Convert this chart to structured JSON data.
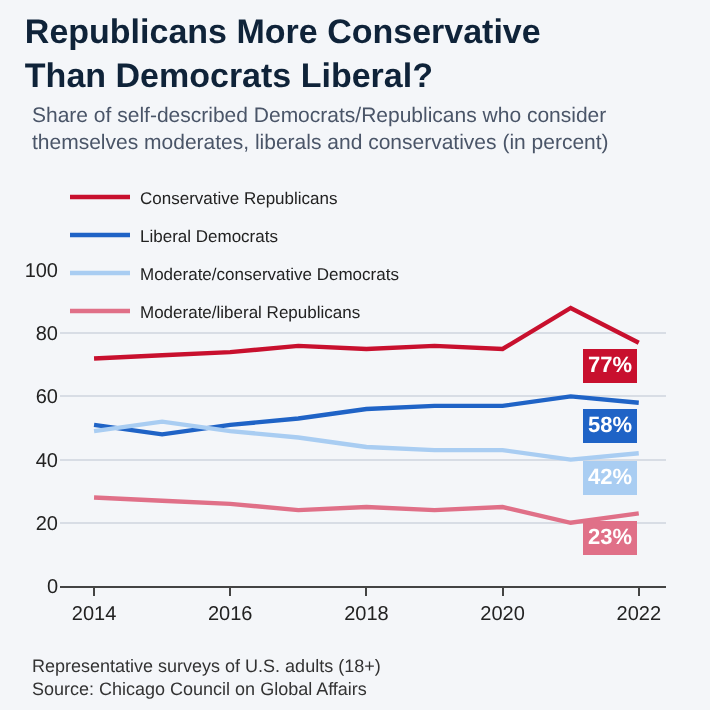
{
  "chart_data": {
    "type": "line",
    "title": "Republicans More Conservative Than Democrats Liberal?",
    "subtitle": "Share of self-described Democrats/Republicans who consider themselves moderates, liberals and conservatives (in percent)",
    "x": [
      2014,
      2015,
      2016,
      2017,
      2018,
      2019,
      2020,
      2021,
      2022
    ],
    "series": [
      {
        "name": "Conservative Republicans",
        "color": "#c8102e",
        "values": [
          72,
          73,
          74,
          76,
          75,
          76,
          75,
          88,
          77
        ],
        "value_labels": [
          null,
          null,
          null,
          null,
          null,
          null,
          null,
          null,
          "77%"
        ]
      },
      {
        "name": "Liberal Democrats",
        "color": "#1f63c6",
        "values": [
          51,
          48,
          51,
          53,
          56,
          57,
          57,
          60,
          58
        ],
        "value_labels": [
          null,
          null,
          null,
          null,
          null,
          null,
          null,
          null,
          "58%"
        ]
      },
      {
        "name": "Moderate/conservative Democrats",
        "color": "#a9cdf2",
        "values": [
          49,
          52,
          49,
          47,
          44,
          43,
          43,
          40,
          42
        ],
        "value_labels": [
          null,
          null,
          null,
          null,
          null,
          null,
          null,
          null,
          "42%"
        ]
      },
      {
        "name": "Moderate/liberal Republicans",
        "color": "#e07088",
        "values": [
          28,
          27,
          26,
          24,
          25,
          24,
          25,
          20,
          23
        ],
        "value_labels": [
          null,
          null,
          null,
          null,
          null,
          null,
          null,
          null,
          "23%"
        ]
      }
    ],
    "xlim": [
      2013.5,
      2022.4
    ],
    "xticks": [
      2014,
      2016,
      2018,
      2020,
      2022
    ],
    "ylim": [
      0,
      100
    ],
    "yticks": [
      0,
      20,
      40,
      60,
      80,
      100
    ],
    "grid": "y",
    "legend": "top left",
    "marker": "none",
    "line_style": "solid",
    "annotations": [
      "Representative surveys of U.S. adults (18+)",
      "Source: Chicago Council on Global Affairs"
    ]
  }
}
